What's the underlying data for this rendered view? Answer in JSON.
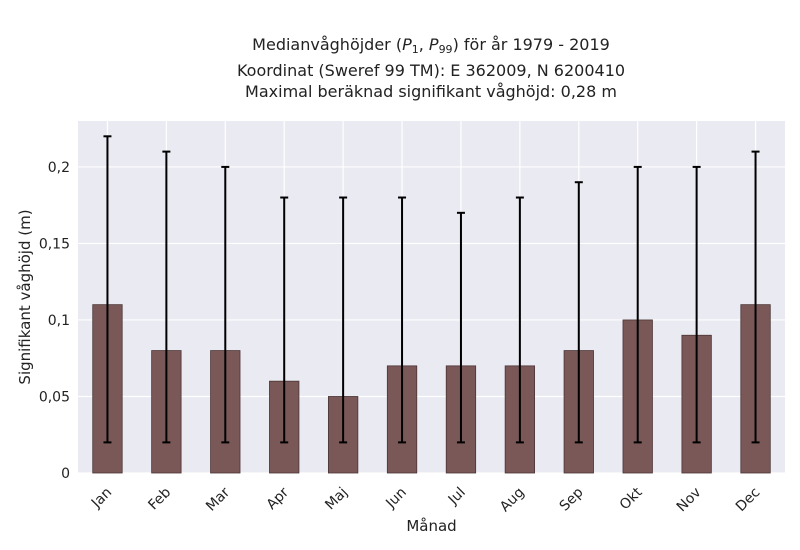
{
  "title": {
    "line1_prefix": "Medianvåghöjder (",
    "p1_var": "P",
    "p1_sub": "1",
    "sep": ", ",
    "p99_var": "P",
    "p99_sub": "99",
    "line1_suffix": ") för år 1979 - 2019",
    "line2": "Koordinat (Sweref 99 TM): E 362009, N 6200410",
    "line3": "Maximal beräknad signifikant våghöjd: 0,28 m"
  },
  "colors": {
    "plot_bg": "#eaeaf2",
    "grid": "#ffffff",
    "bar_fill": "#7b5858",
    "bar_edge": "#4a3434",
    "error_bar": "#000000"
  },
  "chart_data": {
    "type": "bar",
    "categories": [
      "Jan",
      "Feb",
      "Mar",
      "Apr",
      "Maj",
      "Jun",
      "Jul",
      "Aug",
      "Sep",
      "Okt",
      "Nov",
      "Dec"
    ],
    "series": [
      {
        "values": [
          0.11,
          0.08,
          0.08,
          0.06,
          0.05,
          0.07,
          0.07,
          0.07,
          0.08,
          0.1,
          0.09,
          0.11
        ],
        "error_low": [
          0.02,
          0.02,
          0.02,
          0.02,
          0.02,
          0.02,
          0.02,
          0.02,
          0.02,
          0.02,
          0.02,
          0.02
        ],
        "error_high": [
          0.22,
          0.21,
          0.2,
          0.18,
          0.18,
          0.18,
          0.17,
          0.18,
          0.19,
          0.2,
          0.2,
          0.21
        ]
      }
    ],
    "xlabel": "Månad",
    "ylabel": "Signifikant våghöjd (m)",
    "ylim": [
      0,
      0.23
    ],
    "yticks": [
      0,
      0.05,
      0.1,
      0.15,
      0.2
    ],
    "ytick_labels": [
      "0",
      "0,05",
      "0,1",
      "0,15",
      "0,2"
    ],
    "grid": true,
    "legend": "none"
  }
}
